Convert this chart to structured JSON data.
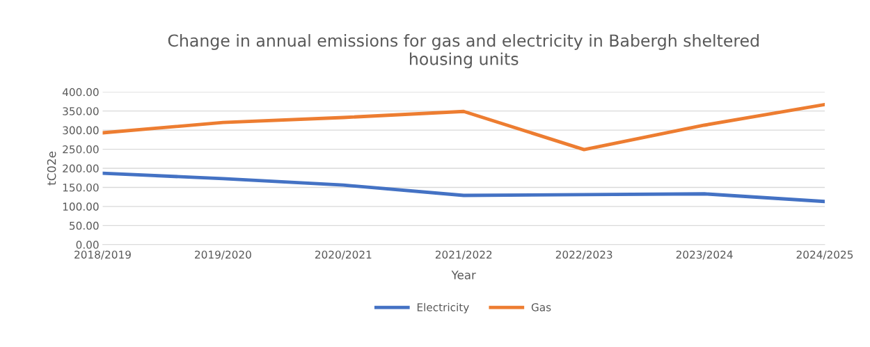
{
  "chart_data": {
    "type": "line",
    "title": "Change in annual emissions for gas and electricity in Babergh sheltered\nhousing units",
    "xlabel": "Year",
    "ylabel": "tC02e",
    "categories": [
      "2018/2019",
      "2019/2020",
      "2020/2021",
      "2021/2022",
      "2022/2023",
      "2023/2024",
      "2024/2025"
    ],
    "series": [
      {
        "name": "Electricity",
        "color": "#4472c4",
        "values": [
          187,
          173,
          156,
          129,
          131,
          133,
          113
        ]
      },
      {
        "name": "Gas",
        "color": "#ed7d31",
        "values": [
          293,
          320,
          333,
          349,
          249,
          313,
          367
        ]
      }
    ],
    "ylim": [
      0,
      400
    ],
    "yticks": [
      {
        "value": 0,
        "label": "0.00"
      },
      {
        "value": 50,
        "label": "50.00"
      },
      {
        "value": 100,
        "label": "100.00"
      },
      {
        "value": 150,
        "label": "150.00"
      },
      {
        "value": 200,
        "label": "200.00"
      },
      {
        "value": 250,
        "label": "250.00"
      },
      {
        "value": 300,
        "label": "300.00"
      },
      {
        "value": 350,
        "label": "350.00"
      },
      {
        "value": 400,
        "label": "400.00"
      }
    ],
    "grid": "y",
    "legend": "bottom",
    "marker": "none",
    "line_style": "solid"
  }
}
